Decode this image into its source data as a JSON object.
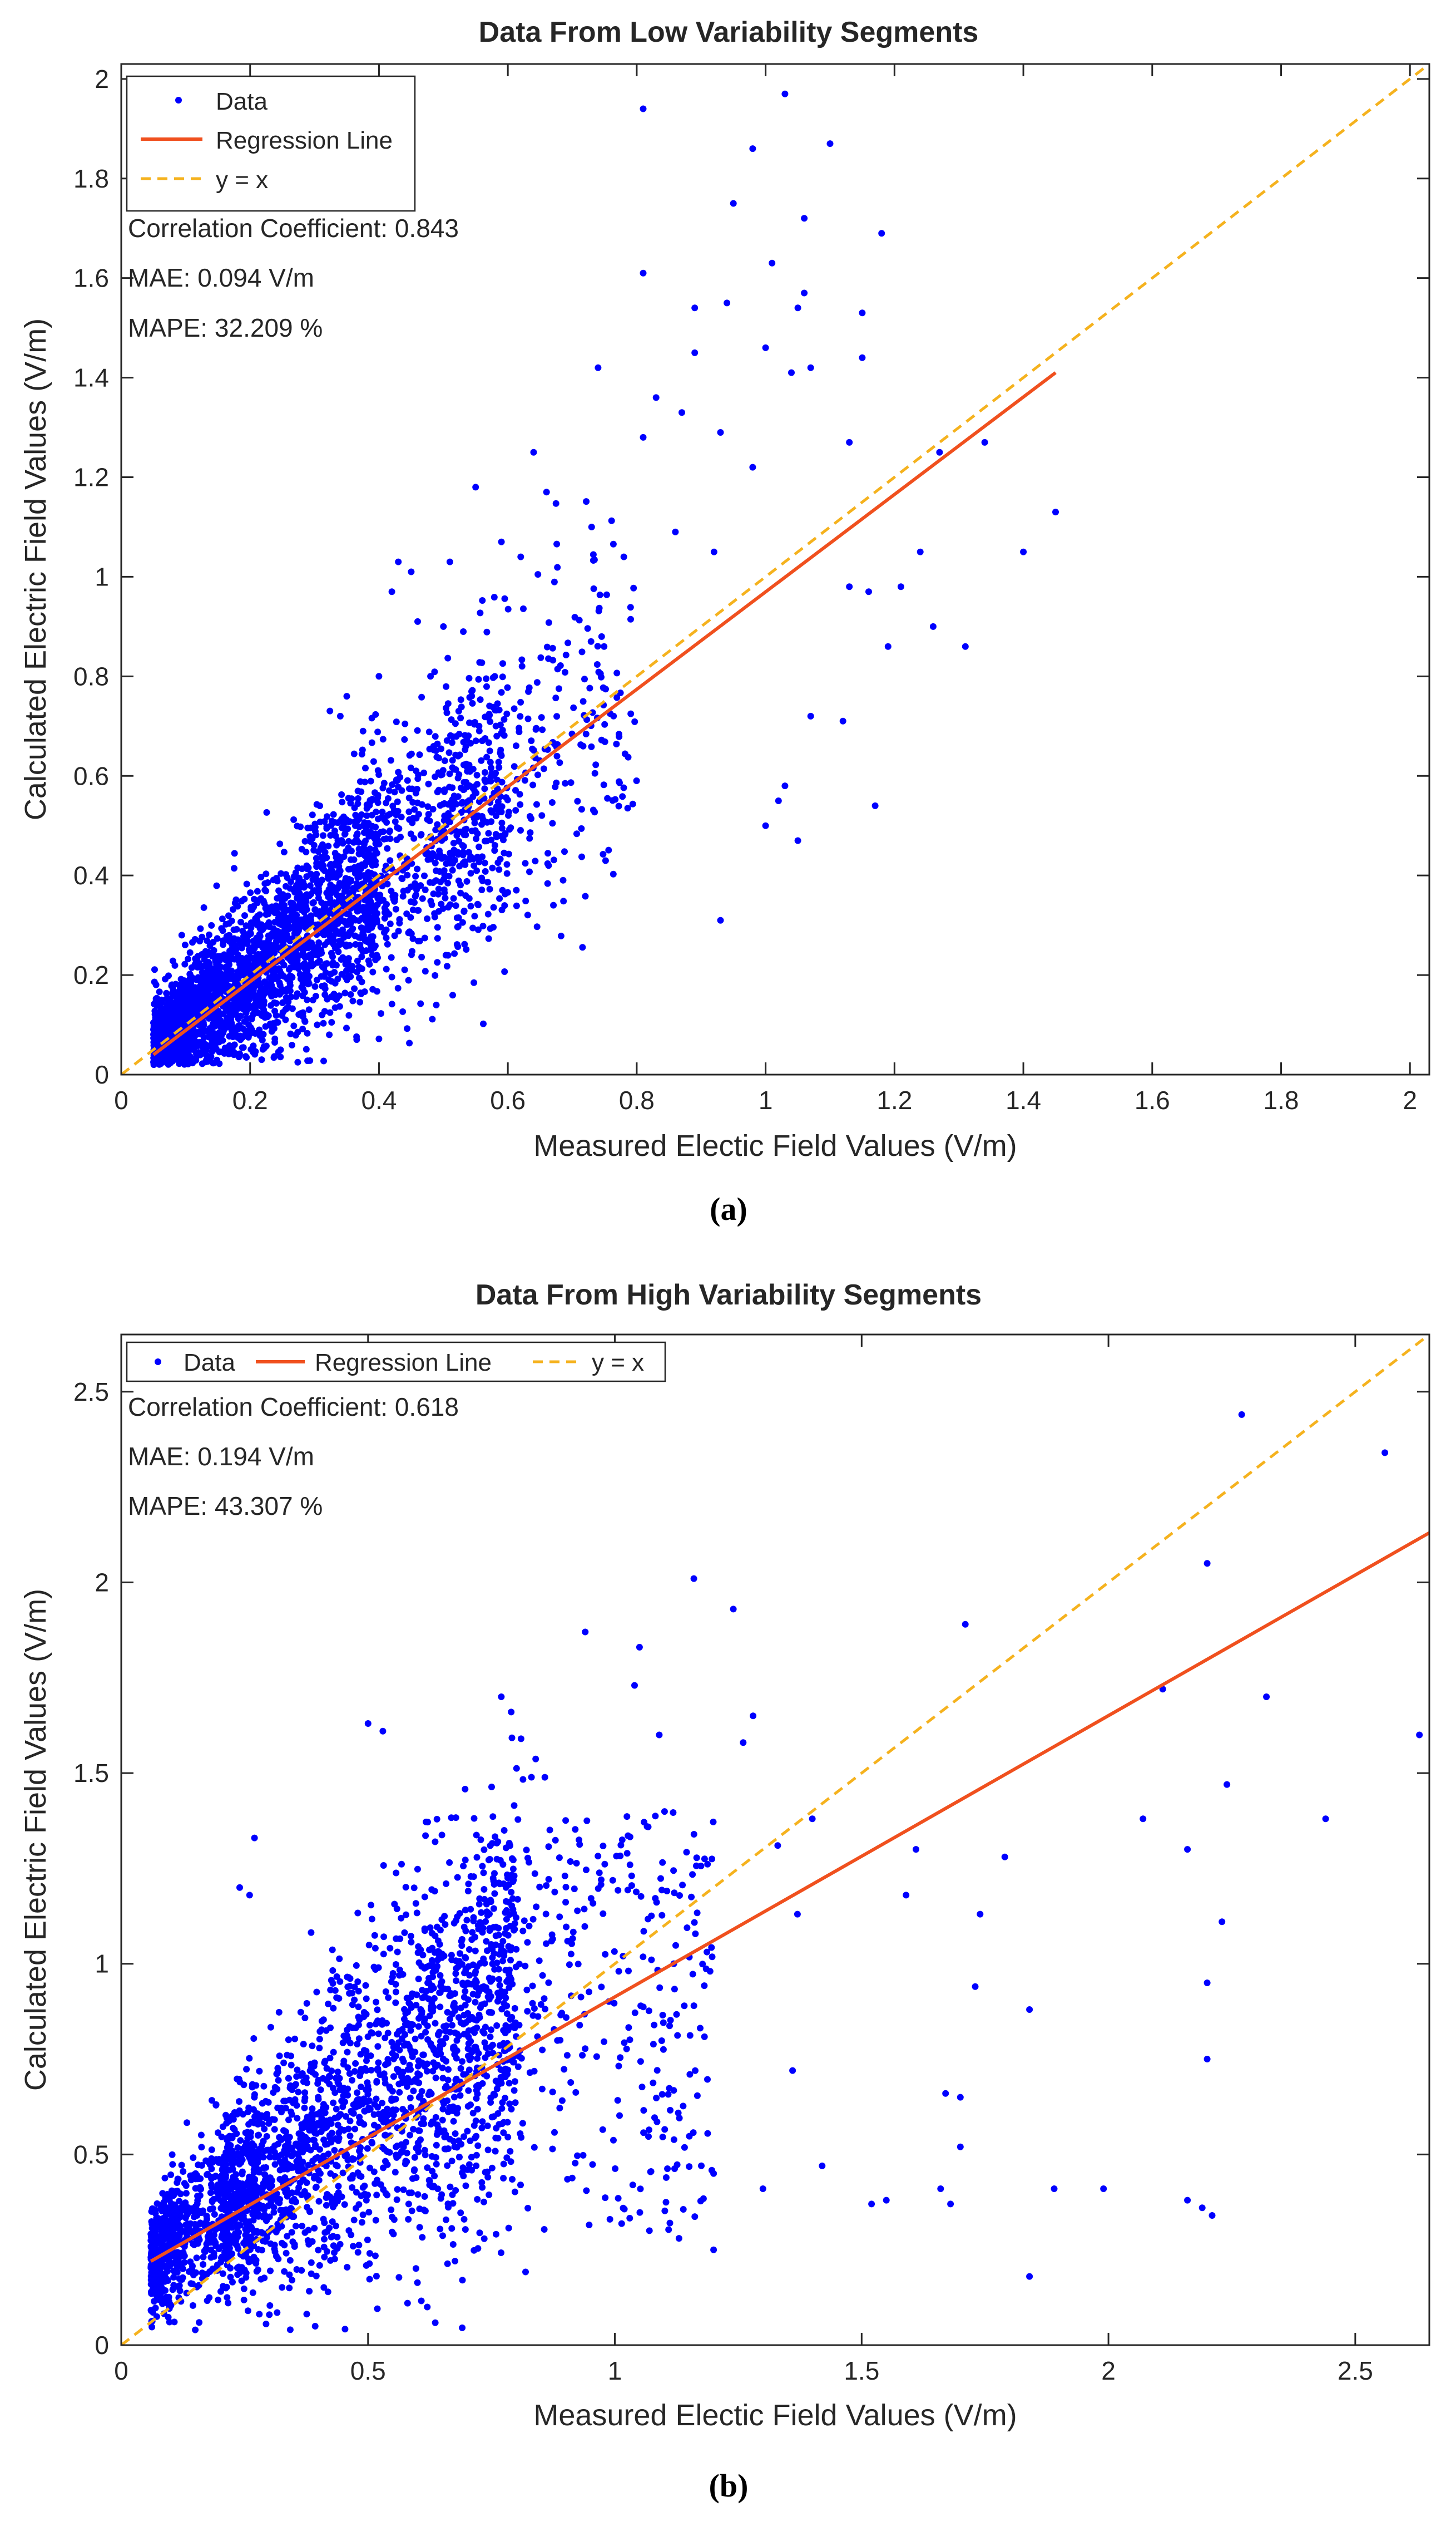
{
  "chart_data": [
    {
      "type": "scatter",
      "title": "Data From Low Variability Segments",
      "xlabel": "Measured Electic Field Values (V/m)",
      "ylabel": "Calculated Electric Field Values (V/m)",
      "xlim": [
        0,
        2.03
      ],
      "ylim": [
        0,
        2.03
      ],
      "xticks": [
        0,
        0.2,
        0.4,
        0.6,
        0.8,
        1,
        1.2,
        1.4,
        1.6,
        1.8,
        2
      ],
      "yticks": [
        0,
        0.2,
        0.4,
        0.6,
        0.8,
        1,
        1.2,
        1.4,
        1.6,
        1.8,
        2
      ],
      "xtick_labels": [
        "0",
        "0.2",
        "0.4",
        "0.6",
        "0.8",
        "1",
        "1.2",
        "1.4",
        "1.6",
        "1.8",
        "2"
      ],
      "ytick_labels": [
        "0",
        "0.2",
        "0.4",
        "0.6",
        "0.8",
        "1",
        "1.2",
        "1.4",
        "1.6",
        "1.8",
        "2"
      ],
      "legend": {
        "position": "top-left",
        "layout": "vertical",
        "entries": [
          {
            "label": "Data",
            "style": "marker",
            "color": "#0000ff"
          },
          {
            "label": "Regression Line",
            "style": "solid",
            "color": "#f0501e"
          },
          {
            "label": "y = x",
            "style": "dashed",
            "color": "#f5b21e"
          }
        ]
      },
      "annotations": [
        "Correlation Coefficient: 0.843",
        "MAE: 0.094 V/m",
        "MAPE: 32.209 %"
      ],
      "regression_line": {
        "x": [
          0.05,
          1.45
        ],
        "y": [
          0.04,
          1.41
        ]
      },
      "identity_line": {
        "x": [
          0,
          2.03
        ],
        "y": [
          0,
          2.03
        ]
      },
      "series": [
        {
          "name": "Data",
          "color": "#0000ff",
          "points": "4000 approx. scattered measurements, dense for x 0.05–0.6 (y 0.02–0.8), sparse tail to x 1.45 with y up to 1.97",
          "points_sample": [
            [
              0.81,
              1.94
            ],
            [
              1.03,
              1.97
            ],
            [
              0.98,
              1.86
            ],
            [
              1.1,
              1.87
            ],
            [
              1.18,
              1.69
            ],
            [
              0.95,
              1.75
            ],
            [
              1.06,
              1.72
            ],
            [
              1.01,
              1.63
            ],
            [
              0.81,
              1.61
            ],
            [
              1.05,
              1.54
            ],
            [
              0.94,
              1.55
            ],
            [
              0.89,
              1.54
            ],
            [
              1.15,
              1.53
            ],
            [
              1.06,
              1.57
            ],
            [
              1.07,
              1.42
            ],
            [
              1.0,
              1.46
            ],
            [
              1.04,
              1.41
            ],
            [
              0.89,
              1.45
            ],
            [
              0.74,
              1.42
            ],
            [
              1.15,
              1.44
            ],
            [
              0.83,
              1.36
            ],
            [
              1.34,
              1.27
            ],
            [
              1.27,
              1.25
            ],
            [
              1.13,
              1.27
            ],
            [
              0.64,
              1.25
            ],
            [
              0.55,
              1.18
            ],
            [
              0.66,
              1.17
            ],
            [
              0.87,
              1.33
            ],
            [
              0.93,
              1.29
            ],
            [
              0.81,
              1.28
            ],
            [
              0.98,
              1.22
            ],
            [
              1.45,
              1.13
            ],
            [
              1.4,
              1.05
            ],
            [
              1.24,
              1.05
            ],
            [
              0.59,
              1.07
            ],
            [
              0.51,
              1.03
            ],
            [
              0.43,
              1.03
            ],
            [
              0.45,
              1.01
            ],
            [
              0.62,
              1.04
            ],
            [
              0.86,
              1.09
            ],
            [
              0.73,
              1.1
            ],
            [
              0.78,
              1.04
            ],
            [
              0.92,
              1.05
            ],
            [
              1.16,
              0.97
            ],
            [
              1.13,
              0.98
            ],
            [
              1.19,
              0.86
            ],
            [
              1.26,
              0.9
            ],
            [
              1.31,
              0.86
            ],
            [
              1.21,
              0.98
            ],
            [
              1.12,
              0.71
            ],
            [
              1.07,
              0.72
            ],
            [
              1.03,
              0.58
            ],
            [
              1.02,
              0.55
            ],
            [
              1.0,
              0.5
            ],
            [
              1.05,
              0.47
            ],
            [
              1.17,
              0.54
            ],
            [
              0.93,
              0.31
            ],
            [
              0.46,
              0.91
            ],
            [
              0.42,
              0.97
            ],
            [
              0.5,
              0.9
            ],
            [
              0.48,
              0.8
            ],
            [
              0.4,
              0.8
            ],
            [
              0.35,
              0.76
            ],
            [
              0.34,
              0.72
            ]
          ]
        }
      ]
    },
    {
      "type": "scatter",
      "title": "Data From High Variability Segments",
      "xlabel": "Measured Electic Field Values (V/m)",
      "ylabel": "Calculated Electric Field Values (V/m)",
      "xlim": [
        0,
        2.65
      ],
      "ylim": [
        0,
        2.65
      ],
      "xticks": [
        0,
        0.5,
        1,
        1.5,
        2,
        2.5
      ],
      "yticks": [
        0,
        0.5,
        1,
        1.5,
        2,
        2.5
      ],
      "xtick_labels": [
        "0",
        "0.5",
        "1",
        "1.5",
        "2",
        "2.5"
      ],
      "ytick_labels": [
        "0",
        "0.5",
        "1",
        "1.5",
        "2",
        "2.5"
      ],
      "legend": {
        "position": "top-left",
        "layout": "horizontal",
        "entries": [
          {
            "label": "Data",
            "style": "marker",
            "color": "#0000ff"
          },
          {
            "label": "Regression Line",
            "style": "solid",
            "color": "#f0501e"
          },
          {
            "label": "y = x",
            "style": "dashed",
            "color": "#f5b21e"
          }
        ]
      },
      "annotations": [
        "Correlation Coefficient: 0.618",
        "MAE: 0.194 V/m",
        "MAPE: 43.307 %"
      ],
      "regression_line": {
        "x": [
          0.06,
          2.65
        ],
        "y": [
          0.22,
          2.13
        ]
      },
      "identity_line": {
        "x": [
          0,
          2.65
        ],
        "y": [
          0,
          2.65
        ]
      },
      "series": [
        {
          "name": "Data",
          "color": "#0000ff",
          "points": "3500 approx. scattered measurements, dense for x 0.06–1.2 (y 0.05–1.7), sparse tail to x 2.63 with y up to 2.44",
          "points_sample": [
            [
              2.27,
              2.44
            ],
            [
              2.56,
              2.34
            ],
            [
              2.2,
              2.05
            ],
            [
              2.32,
              1.7
            ],
            [
              2.11,
              1.72
            ],
            [
              2.63,
              1.6
            ],
            [
              2.44,
              1.38
            ],
            [
              2.24,
              1.47
            ],
            [
              2.16,
              1.3
            ],
            [
              2.23,
              1.11
            ],
            [
              2.2,
              0.95
            ],
            [
              2.2,
              0.75
            ],
            [
              2.07,
              1.38
            ],
            [
              1.71,
              1.89
            ],
            [
              1.79,
              1.28
            ],
            [
              1.74,
              1.13
            ],
            [
              1.61,
              1.3
            ],
            [
              1.59,
              1.18
            ],
            [
              1.84,
              0.88
            ],
            [
              1.73,
              0.94
            ],
            [
              1.7,
              0.65
            ],
            [
              1.67,
              0.66
            ],
            [
              1.66,
              0.41
            ],
            [
              1.7,
              0.52
            ],
            [
              1.68,
              0.37
            ],
            [
              1.52,
              0.37
            ],
            [
              1.55,
              0.38
            ],
            [
              1.89,
              0.41
            ],
            [
              1.99,
              0.41
            ],
            [
              2.16,
              0.38
            ],
            [
              2.19,
              0.36
            ],
            [
              2.21,
              0.34
            ],
            [
              1.84,
              0.18
            ],
            [
              1.16,
              2.01
            ],
            [
              1.24,
              1.93
            ],
            [
              1.05,
              1.83
            ],
            [
              0.94,
              1.87
            ],
            [
              1.09,
              1.6
            ],
            [
              1.28,
              1.65
            ],
            [
              1.26,
              1.58
            ],
            [
              1.04,
              1.73
            ],
            [
              0.77,
              1.7
            ],
            [
              0.79,
              1.66
            ],
            [
              0.81,
              1.59
            ],
            [
              0.5,
              1.63
            ],
            [
              0.53,
              1.61
            ],
            [
              0.27,
              1.33
            ],
            [
              0.24,
              1.2
            ],
            [
              0.26,
              1.18
            ],
            [
              1.4,
              1.38
            ],
            [
              1.33,
              1.31
            ],
            [
              1.37,
              1.13
            ],
            [
              1.36,
              0.72
            ],
            [
              1.42,
              0.47
            ],
            [
              1.3,
              0.41
            ],
            [
              1.2,
              0.45
            ],
            [
              1.07,
              0.3
            ],
            [
              1.13,
              0.28
            ],
            [
              1.2,
              0.25
            ],
            [
              0.99,
              0.33
            ],
            [
              0.58,
              0.11
            ],
            [
              0.62,
              0.1
            ],
            [
              0.3,
              0.08
            ],
            [
              0.15,
              0.04
            ]
          ]
        }
      ]
    }
  ],
  "captions": [
    "(a)",
    "(b)"
  ]
}
